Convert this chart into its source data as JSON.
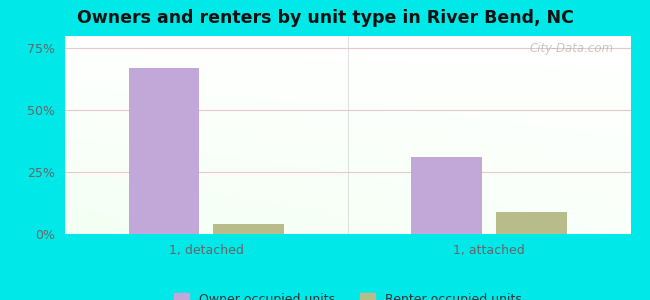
{
  "title": "Owners and renters by unit type in River Bend, NC",
  "categories": [
    "1, detached",
    "1, attached"
  ],
  "owner_values": [
    67,
    31
  ],
  "renter_values": [
    4,
    9
  ],
  "owner_color": "#c2a8d8",
  "renter_color": "#b8bc8a",
  "background_outer": "#00e8e8",
  "yticks": [
    0,
    25,
    50,
    75
  ],
  "ytick_labels": [
    "0%",
    "25%",
    "50%",
    "75%"
  ],
  "ylim": [
    0,
    80
  ],
  "legend_owner": "Owner occupied units",
  "legend_renter": "Renter occupied units",
  "bar_width": 0.25,
  "watermark": "City-Data.com",
  "title_fontsize": 12.5
}
